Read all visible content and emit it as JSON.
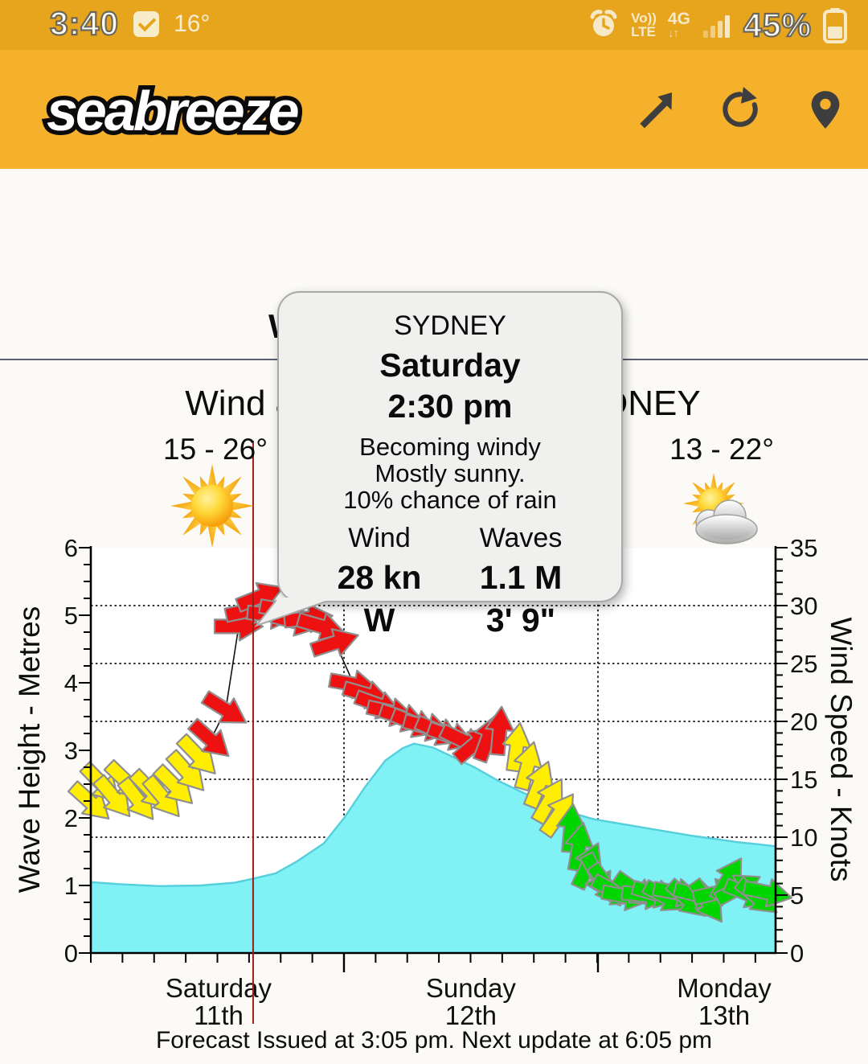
{
  "status_bar": {
    "time": "3:40",
    "ambient_temp": "16°",
    "volte_line1": "Vo))",
    "volte_line2": "LTE",
    "network": "4G",
    "network_arrows": "↓↑",
    "battery_percent": "45%"
  },
  "header": {
    "logo": "seabreeze"
  },
  "page": {
    "partial_heading": "W"
  },
  "tooltip": {
    "location": "SYDNEY",
    "day": "Saturday",
    "time": "2:30 pm",
    "desc_lines": [
      "Becoming windy",
      "Mostly sunny.",
      "10% chance of rain"
    ],
    "wind_label": "Wind",
    "wind_speed": "28 kn",
    "wind_dir": "W",
    "waves_label": "Waves",
    "wave_height": "1.1 M",
    "wave_height_ft": "3' 9\""
  },
  "chart_data": {
    "type": "area",
    "title": "Wind & Wave Forecast SYDNEY",
    "footer": "Forecast Issued at 3:05 pm. Next update at 6:05 pm",
    "left_axis": {
      "label": "Wave Height - Metres",
      "min": 0,
      "max": 6,
      "ticks": [
        0,
        1,
        2,
        3,
        4,
        5,
        6
      ]
    },
    "right_axis": {
      "label": "Wind Speed - Knots",
      "min": 0,
      "max": 35,
      "ticks": [
        0,
        5,
        10,
        15,
        20,
        25,
        30,
        35
      ],
      "gridlines_kn": [
        5,
        10,
        15,
        20,
        25,
        30
      ]
    },
    "x_axis": {
      "days": [
        {
          "name": "Saturday",
          "date": "11th"
        },
        {
          "name": "Sunday",
          "date": "12th"
        },
        {
          "name": "Monday",
          "date": "13th"
        }
      ],
      "day_label_centers": [
        0.1866,
        0.555,
        0.9249
      ],
      "boundaries": [
        0.3697,
        0.7406
      ]
    },
    "day_summaries": [
      {
        "temp": "15 - 26°",
        "icon": "sunny-icon"
      },
      {
        "temp": "13 - 22°",
        "icon": "partly-cloudy-icon"
      }
    ],
    "selected_x_fraction": 0.237,
    "selected_point": {
      "day": "Saturday",
      "time": "2:30 pm",
      "wind_kn": 28,
      "wind_dir": "W",
      "wave_m": 1.1
    },
    "wave_series_m": [
      [
        0,
        1.05
      ],
      [
        0.04,
        1.02
      ],
      [
        0.1,
        0.99
      ],
      [
        0.16,
        1.0
      ],
      [
        0.21,
        1.04
      ],
      [
        0.237,
        1.1
      ],
      [
        0.27,
        1.18
      ],
      [
        0.3,
        1.35
      ],
      [
        0.34,
        1.62
      ],
      [
        0.37,
        2.0
      ],
      [
        0.4,
        2.45
      ],
      [
        0.43,
        2.85
      ],
      [
        0.455,
        3.03
      ],
      [
        0.472,
        3.1
      ],
      [
        0.5,
        3.04
      ],
      [
        0.525,
        2.92
      ],
      [
        0.56,
        2.75
      ],
      [
        0.595,
        2.55
      ],
      [
        0.63,
        2.38
      ],
      [
        0.665,
        2.22
      ],
      [
        0.7,
        2.08
      ],
      [
        0.735,
        1.98
      ],
      [
        0.77,
        1.92
      ],
      [
        0.805,
        1.86
      ],
      [
        0.84,
        1.8
      ],
      [
        0.875,
        1.74
      ],
      [
        0.91,
        1.69
      ],
      [
        0.945,
        1.64
      ],
      [
        0.975,
        1.61
      ],
      [
        1,
        1.58
      ]
    ],
    "wind_arrows": [
      [
        0.0,
        13.0,
        42,
        "Y"
      ],
      [
        0.016,
        14.6,
        46,
        "Y"
      ],
      [
        0.034,
        13.4,
        50,
        "Y"
      ],
      [
        0.052,
        14.8,
        44,
        "Y"
      ],
      [
        0.069,
        13.2,
        52,
        "Y"
      ],
      [
        0.088,
        14.0,
        46,
        "Y"
      ],
      [
        0.106,
        13.4,
        50,
        "Y"
      ],
      [
        0.123,
        14.4,
        45,
        "Y"
      ],
      [
        0.141,
        15.6,
        48,
        "Y"
      ],
      [
        0.157,
        17.0,
        46,
        "Y"
      ],
      [
        0.175,
        18.4,
        42,
        "R"
      ],
      [
        0.197,
        21.0,
        32,
        "R"
      ],
      [
        0.216,
        28.2,
        0,
        "R"
      ],
      [
        0.232,
        29.6,
        -12,
        "R"
      ],
      [
        0.248,
        30.8,
        -22,
        "R"
      ],
      [
        0.264,
        29.2,
        6,
        "R"
      ],
      [
        0.282,
        29.6,
        10,
        "R"
      ],
      [
        0.3,
        28.6,
        14,
        "R"
      ],
      [
        0.318,
        28.9,
        -6,
        "R"
      ],
      [
        0.337,
        28.2,
        16,
        "R"
      ],
      [
        0.357,
        26.8,
        -18,
        "R"
      ],
      [
        0.384,
        23.2,
        10,
        "R"
      ],
      [
        0.404,
        22.3,
        16,
        "R"
      ],
      [
        0.421,
        21.4,
        20,
        "R"
      ],
      [
        0.439,
        20.8,
        12,
        "R"
      ],
      [
        0.457,
        20.3,
        18,
        "R"
      ],
      [
        0.474,
        19.8,
        22,
        "R"
      ],
      [
        0.492,
        19.5,
        15,
        "R"
      ],
      [
        0.509,
        19.1,
        24,
        "R"
      ],
      [
        0.527,
        18.7,
        19,
        "R"
      ],
      [
        0.545,
        18.3,
        26,
        "R"
      ],
      [
        0.562,
        18.1,
        -40,
        "R"
      ],
      [
        0.58,
        18.6,
        -70,
        "R"
      ],
      [
        0.597,
        19.2,
        -85,
        "R"
      ],
      [
        0.622,
        17.8,
        -82,
        "Y"
      ],
      [
        0.638,
        16.2,
        -75,
        "Y"
      ],
      [
        0.655,
        14.6,
        -68,
        "Y"
      ],
      [
        0.67,
        13.2,
        -60,
        "Y"
      ],
      [
        0.684,
        12.0,
        -55,
        "Y"
      ],
      [
        0.701,
        10.8,
        -85,
        "G"
      ],
      [
        0.713,
        9.2,
        -80,
        "G"
      ],
      [
        0.726,
        7.6,
        -65,
        "G"
      ],
      [
        0.74,
        6.6,
        62,
        "G"
      ],
      [
        0.753,
        5.8,
        55,
        "G"
      ],
      [
        0.766,
        5.3,
        28,
        "G"
      ],
      [
        0.782,
        4.9,
        10,
        "G"
      ],
      [
        0.796,
        5.4,
        35,
        "G"
      ],
      [
        0.811,
        5.0,
        6,
        "G"
      ],
      [
        0.826,
        5.1,
        16,
        "G"
      ],
      [
        0.841,
        4.8,
        28,
        "G"
      ],
      [
        0.857,
        5.2,
        10,
        "G"
      ],
      [
        0.872,
        4.6,
        42,
        "G"
      ],
      [
        0.887,
        5.0,
        14,
        "G"
      ],
      [
        0.901,
        4.4,
        55,
        "G"
      ],
      [
        0.915,
        5.2,
        -12,
        "G"
      ],
      [
        0.931,
        6.4,
        -58,
        "G"
      ],
      [
        0.946,
        5.6,
        -28,
        "G"
      ],
      [
        0.96,
        5.1,
        22,
        "G"
      ],
      [
        0.974,
        4.8,
        38,
        "G"
      ],
      [
        0.989,
        5.2,
        12,
        "G"
      ]
    ],
    "colors": {
      "red": "#EE1111",
      "yellow": "#FFEE00",
      "green": "#00D500",
      "wave_fill": "#80F1F5",
      "wave_edge": "#56CFDC",
      "crosshair": "#9B1B1B",
      "accent_amber": "#F5B02C"
    }
  }
}
